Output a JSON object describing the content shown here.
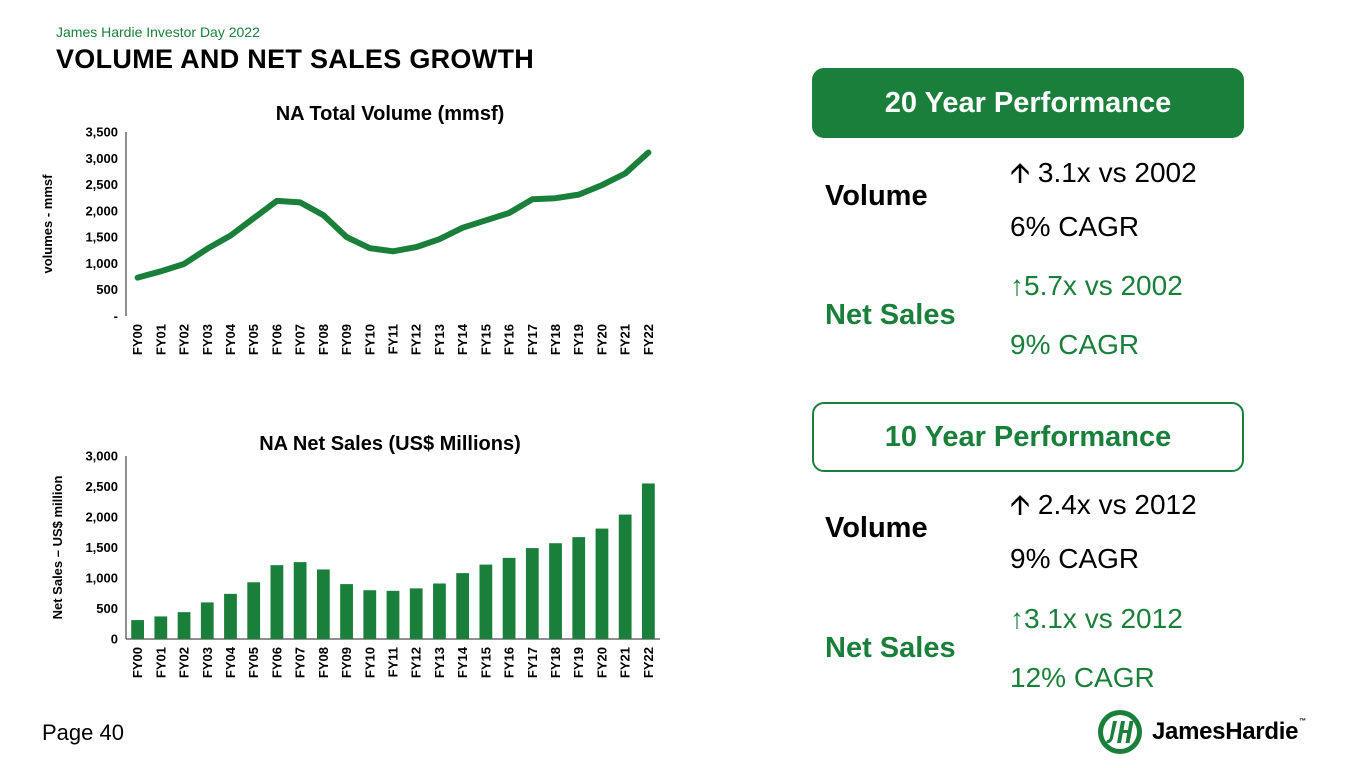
{
  "header": {
    "kicker": "James Hardie Investor Day 2022",
    "title": "VOLUME AND NET SALES GROWTH"
  },
  "chart_data": [
    {
      "type": "line",
      "title": "NA Total Volume (mmsf)",
      "xlabel": "",
      "ylabel": "volumes - mmsf",
      "categories": [
        "FY00",
        "FY01",
        "FY02",
        "FY03",
        "FY04",
        "FY05",
        "FY06",
        "FY07",
        "FY08",
        "FY09",
        "FY10",
        "FY11",
        "FY12",
        "FY13",
        "FY14",
        "FY15",
        "FY16",
        "FY17",
        "FY18",
        "FY19",
        "FY20",
        "FY21",
        "FY22"
      ],
      "values": [
        730,
        850,
        990,
        1280,
        1530,
        1860,
        2190,
        2160,
        1920,
        1500,
        1290,
        1230,
        1310,
        1460,
        1680,
        1820,
        1960,
        2220,
        2240,
        2310,
        2490,
        2710,
        3110
      ],
      "ylim": [
        0,
        3500
      ],
      "yticks": [
        0,
        500,
        1000,
        1500,
        2000,
        2500,
        3000,
        3500
      ],
      "ytick_labels": [
        "-",
        "500",
        "1,000",
        "1,500",
        "2,000",
        "2,500",
        "3,000",
        "3,500"
      ],
      "color": "#1a7f3a"
    },
    {
      "type": "bar",
      "title": "NA Net Sales (US$ Millions)",
      "xlabel": "",
      "ylabel": "Net Sales – US$ million",
      "categories": [
        "FY00",
        "FY01",
        "FY02",
        "FY03",
        "FY04",
        "FY05",
        "FY06",
        "FY07",
        "FY08",
        "FY09",
        "FY10",
        "FY11",
        "FY12",
        "FY13",
        "FY14",
        "FY15",
        "FY16",
        "FY17",
        "FY18",
        "FY19",
        "FY20",
        "FY21",
        "FY22"
      ],
      "values": [
        310,
        370,
        440,
        600,
        740,
        930,
        1210,
        1260,
        1140,
        900,
        800,
        790,
        830,
        910,
        1080,
        1220,
        1330,
        1490,
        1570,
        1670,
        1810,
        2040,
        2550
      ],
      "ylim": [
        0,
        3000
      ],
      "yticks": [
        0,
        500,
        1000,
        1500,
        2000,
        2500,
        3000
      ],
      "ytick_labels": [
        "0",
        "500",
        "1,000",
        "1,500",
        "2,000",
        "2,500",
        "3,000"
      ],
      "color": "#1a7f3a"
    }
  ],
  "performance": {
    "twenty_year": {
      "heading": "20 Year Performance",
      "volume_label": "Volume",
      "volume_line1": "🡩 3.1x vs 2002",
      "volume_line2": "6% CAGR",
      "sales_label": "Net Sales",
      "sales_line1": "↑5.7x vs 2002",
      "sales_line2": "9% CAGR"
    },
    "ten_year": {
      "heading": "10 Year Performance",
      "volume_label": "Volume",
      "volume_line1": "🡩 2.4x vs 2012",
      "volume_line2": "9% CAGR",
      "sales_label": "Net Sales",
      "sales_line1": "↑3.1x vs 2012",
      "sales_line2": "12% CAGR"
    }
  },
  "footer": {
    "page": "Page 40",
    "logo_text": "JamesHardie",
    "logo_tm": "™"
  },
  "colors": {
    "brand_green": "#1a7f3a"
  },
  "icons": {
    "logo": "jh-logo-icon"
  }
}
